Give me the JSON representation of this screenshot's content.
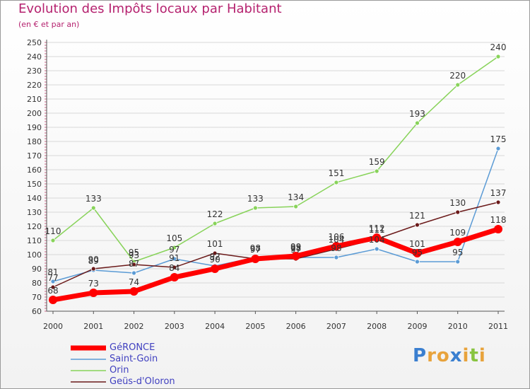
{
  "chart_data": {
    "type": "line",
    "title": "Evolution des Impôts locaux par Habitant",
    "subtitle": "(en € et par an)",
    "xlabel": "",
    "ylabel": "",
    "ylim": [
      60,
      250
    ],
    "yticks": [
      60,
      70,
      80,
      90,
      100,
      110,
      120,
      130,
      140,
      150,
      160,
      170,
      180,
      190,
      200,
      210,
      220,
      230,
      240,
      250
    ],
    "categories": [
      "2000",
      "2001",
      "2002",
      "2003",
      "2004",
      "2005",
      "2006",
      "2007",
      "2008",
      "2009",
      "2010",
      "2011"
    ],
    "series": [
      {
        "name": "GéRONCE",
        "color": "#ff0000",
        "values": [
          68,
          73,
          74,
          84,
          90,
          97,
          99,
          106,
          112,
          101,
          109,
          118
        ]
      },
      {
        "name": "Saint-Goin",
        "color": "#5b9bd5",
        "values": [
          81,
          89,
          87,
          97,
          92,
          98,
          98,
          98,
          104,
          95,
          95,
          175
        ]
      },
      {
        "name": "Orin",
        "color": "#88d35a",
        "values": [
          110,
          133,
          95,
          105,
          122,
          133,
          134,
          151,
          159,
          193,
          220,
          240
        ]
      },
      {
        "name": "Geüs-d'Oloron",
        "color": "#6b1a1a",
        "values": [
          77,
          90,
          93,
          91,
          101,
          97,
          97,
          104,
          111,
          121,
          130,
          137
        ]
      }
    ],
    "legend_position": "bottom-left"
  },
  "logo_text": "Proxiti",
  "colors": {
    "title": "#b5226f",
    "legend_text": "#4040c0",
    "axis": "#555555",
    "grid": "#d8d8d8",
    "label": "#333333"
  }
}
